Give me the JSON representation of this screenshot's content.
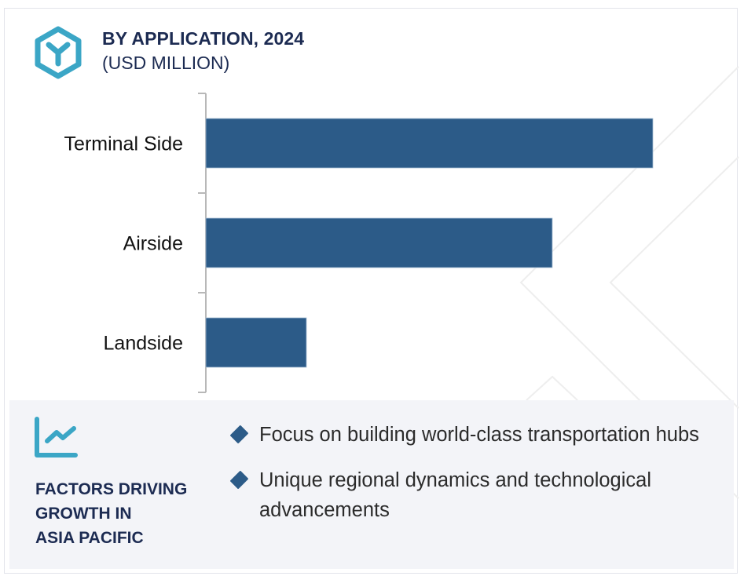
{
  "header": {
    "title": "BY APPLICATION, 2024",
    "subtitle": "(USD MILLION)",
    "icon": "hexagon-y-icon"
  },
  "colors": {
    "bar": "#2c5b88",
    "title": "#1c2b52",
    "accent_icon": "#3ba6c6",
    "panel_bg": "#f3f4f8",
    "axis": "#b8b8b8"
  },
  "chart_data": {
    "type": "bar",
    "orientation": "horizontal",
    "title": "BY APPLICATION, 2024",
    "subtitle": "(USD MILLION)",
    "categories": [
      "Terminal Side",
      "Airside",
      "Landside"
    ],
    "values": [
      100,
      77.5,
      22.5
    ],
    "value_note": "relative values (no axis scale shown)",
    "xlabel": "",
    "ylabel": "",
    "xlim": [
      0,
      100
    ],
    "grid": false,
    "legend": "none"
  },
  "footer": {
    "icon": "trend-chart-icon",
    "heading_lines": [
      "FACTORS DRIVING",
      "GROWTH IN",
      "ASIA PACIFIC"
    ],
    "bullets": [
      "Focus on building world-class transportation hubs",
      "Unique regional dynamics and technological advancements"
    ]
  }
}
